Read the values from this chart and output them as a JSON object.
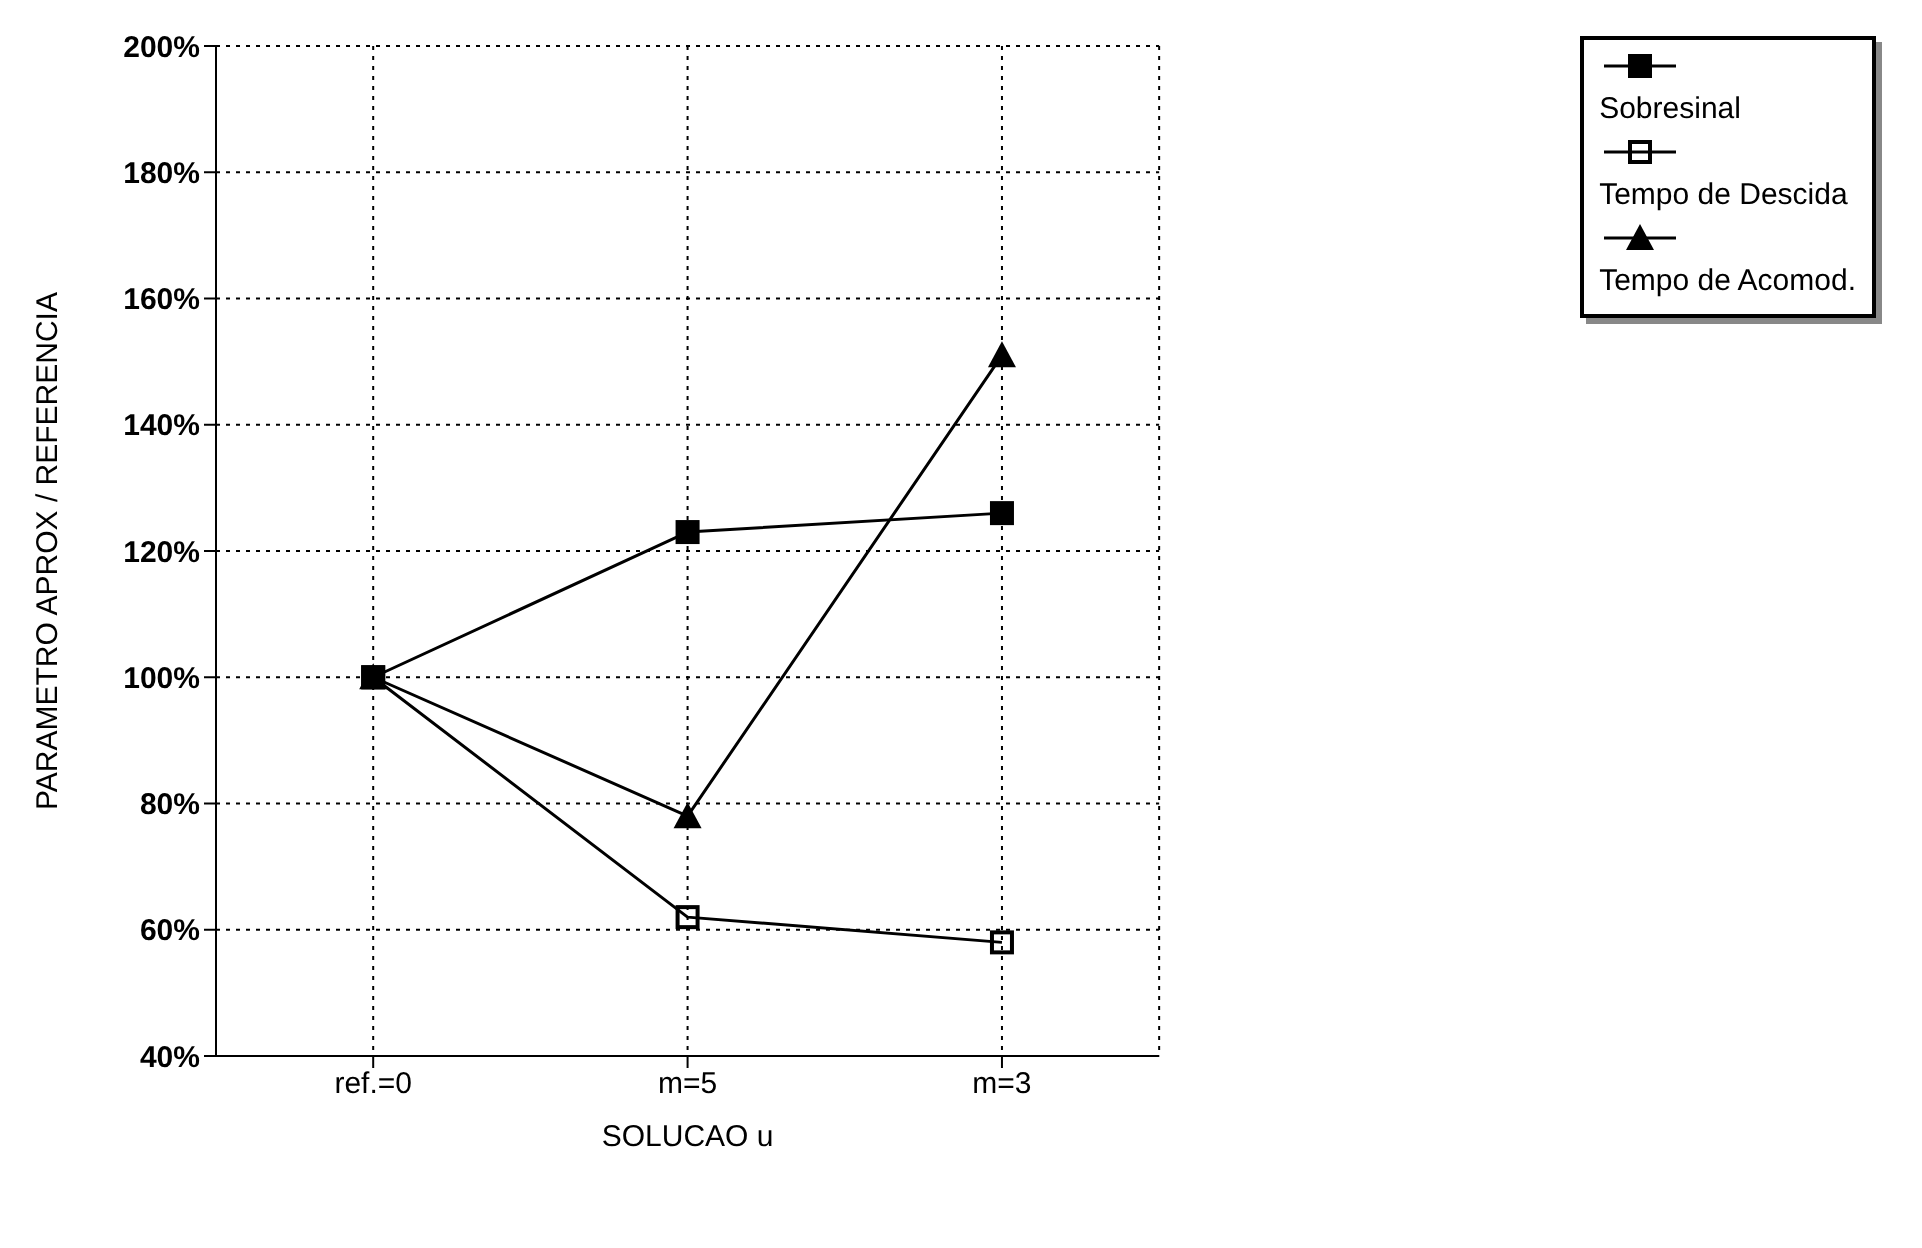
{
  "chart_data": {
    "type": "line",
    "xlabel": "SOLUCAO u",
    "ylabel": "PARAMETRO APROX / REFERENCIA",
    "categories": [
      "ref.=0",
      "m=5",
      "m=3"
    ],
    "series": [
      {
        "name": "Sobresinal",
        "color": "#000000",
        "marker": "square",
        "values": [
          100,
          123,
          126
        ]
      },
      {
        "name": "Tempo de Descida",
        "color": "#000000",
        "marker": "square-open",
        "values": [
          100,
          62,
          58
        ]
      },
      {
        "name": "Tempo de Acomod.",
        "color": "#000000",
        "marker": "triangle",
        "values": [
          100,
          78,
          151
        ]
      }
    ],
    "ylim": [
      40,
      200
    ],
    "yticks": [
      {
        "value": 40,
        "label": "40%"
      },
      {
        "value": 60,
        "label": "60%"
      },
      {
        "value": 80,
        "label": "80%"
      },
      {
        "value": 100,
        "label": "100%"
      },
      {
        "value": 120,
        "label": "120%"
      },
      {
        "value": 140,
        "label": "140%"
      },
      {
        "value": 160,
        "label": "160%"
      },
      {
        "value": 180,
        "label": "180%"
      },
      {
        "value": 200,
        "label": "200%"
      }
    ],
    "grid": true,
    "line_style": "solid",
    "legend": "top right"
  }
}
